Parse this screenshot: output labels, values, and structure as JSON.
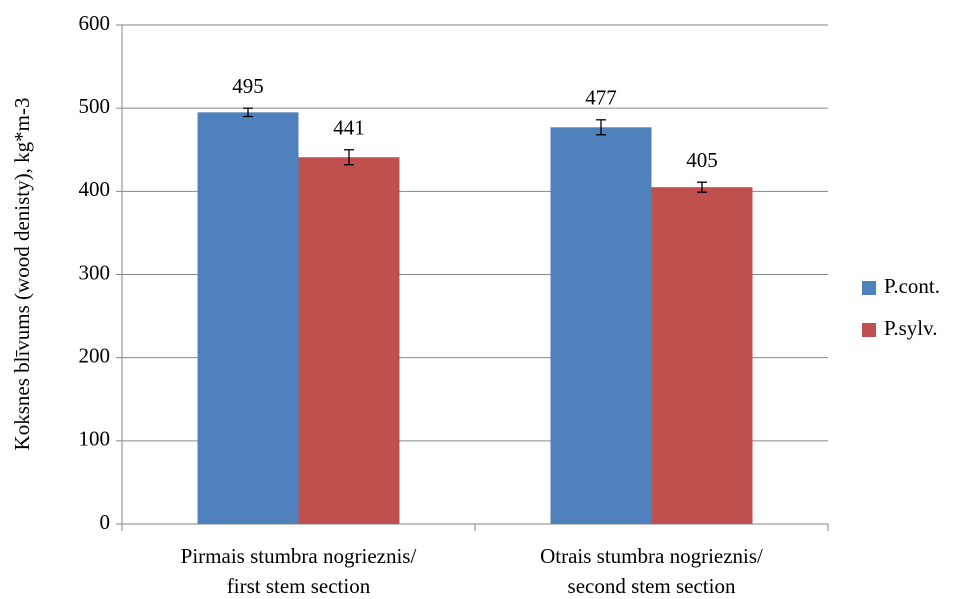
{
  "chart_data": {
    "type": "bar",
    "y_label": "Koksnes blīvums (wood denisty), kg*m-3",
    "categories": [
      [
        "Pirmais stumbra nogrieznis/",
        "first stem section"
      ],
      [
        "Otrais stumbra nogrieznis/",
        "second stem section"
      ]
    ],
    "series": [
      {
        "name": "P.cont.",
        "color": "#4f81bd",
        "values": [
          495,
          477
        ],
        "errors": [
          5,
          9
        ]
      },
      {
        "name": "P.sylv.",
        "color": "#c0504d",
        "values": [
          441,
          405
        ],
        "errors": [
          9,
          6
        ]
      }
    ],
    "ylim": [
      0,
      600
    ],
    "yticks": [
      0,
      100,
      200,
      300,
      400,
      500,
      600
    ],
    "grid": true,
    "legend": "right"
  }
}
